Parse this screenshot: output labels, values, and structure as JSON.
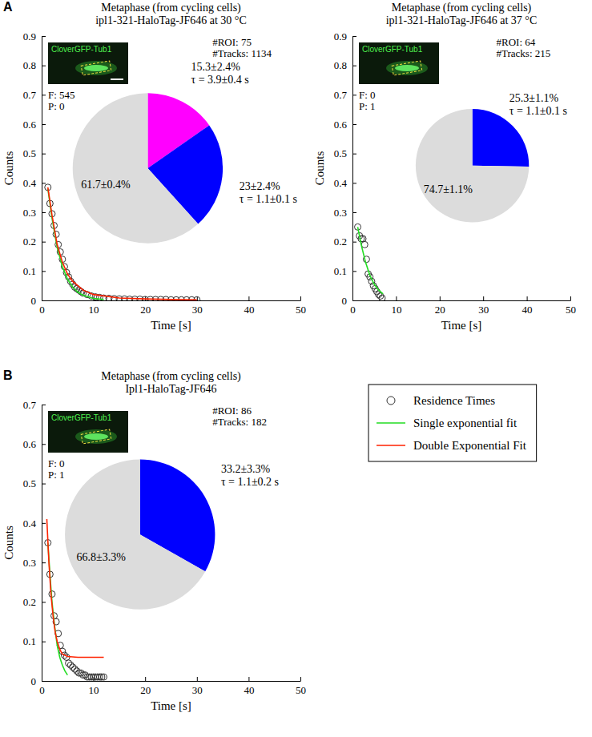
{
  "chart_data": [
    {
      "type": "scatter",
      "panel_label": "A",
      "title": "Metaphase (from cycling cells)",
      "subtitle": "ipl1-321-HaloTag-JF646 at 30 °C",
      "x_label": "Time [s]",
      "y_label": "Counts",
      "xlim": [
        0,
        50
      ],
      "xticks": [
        0,
        10,
        20,
        30,
        40,
        50
      ],
      "ylim": [
        0,
        0.9
      ],
      "yticks": [
        0,
        0.1,
        0.2,
        0.3,
        0.4,
        0.5,
        0.6,
        0.7,
        0.8,
        0.9
      ],
      "annotations": [
        "CloverGFP-Tub1",
        "#ROI: 75",
        "#Tracks: 1134",
        "F: 545",
        "P: 0"
      ],
      "series": [
        {
          "type": "scatter",
          "marker": "circle",
          "color": "#333333",
          "x": [
            1.2,
            1.6,
            2,
            2.4,
            2.8,
            3.2,
            3.6,
            4,
            4.4,
            4.8,
            5.2,
            5.6,
            6,
            6.4,
            6.8,
            7.2,
            7.6,
            8,
            8.8,
            9.6,
            10.4,
            11.2,
            12,
            13,
            14,
            15,
            16,
            17,
            18,
            19,
            20,
            21,
            22,
            23,
            24,
            25,
            26,
            27,
            28,
            29,
            30
          ],
          "values": [
            0.385,
            0.33,
            0.295,
            0.255,
            0.225,
            0.19,
            0.165,
            0.14,
            0.115,
            0.095,
            0.08,
            0.065,
            0.055,
            0.045,
            0.04,
            0.035,
            0.03,
            0.025,
            0.02,
            0.015,
            0.012,
            0.01,
            0.008,
            0.007,
            0.006,
            0.005,
            0.005,
            0.004,
            0.004,
            0.004,
            0.003,
            0.003,
            0.003,
            0.003,
            0.003,
            0.002,
            0.002,
            0.002,
            0.002,
            0.002,
            0.002
          ]
        },
        {
          "type": "line",
          "line_style": "solid",
          "color": "#22dd22",
          "x": [
            1.2,
            2,
            3,
            4,
            5,
            6,
            7,
            8,
            10,
            12
          ],
          "values": [
            0.38,
            0.28,
            0.18,
            0.115,
            0.072,
            0.045,
            0.028,
            0.018,
            0.007,
            0.003
          ]
        },
        {
          "type": "line",
          "line_style": "solid",
          "color": "#ff2200",
          "x": [
            1.2,
            2,
            3,
            4,
            5,
            6,
            8,
            10,
            15,
            20,
            25,
            30
          ],
          "values": [
            0.385,
            0.29,
            0.19,
            0.13,
            0.09,
            0.065,
            0.035,
            0.02,
            0.008,
            0.005,
            0.003,
            0.002
          ]
        }
      ],
      "pie": {
        "values": [
          15.3,
          23,
          61.7
        ],
        "value_labels": [
          "15.3±2.4%",
          "23±2.4%",
          "61.7±0.4%"
        ],
        "tau_labels": [
          "τ = 3.9±0.4 s",
          "τ = 1.1±0.1 s",
          null
        ],
        "colors": [
          "#ff00ff",
          "#0000ff",
          "#dcdcdc"
        ]
      }
    },
    {
      "type": "scatter",
      "title": "Metaphase (from cycling cells)",
      "subtitle": "ipl1-321-HaloTag-JF646 at 37 °C",
      "x_label": "Time [s]",
      "y_label": "Counts",
      "xlim": [
        0,
        50
      ],
      "xticks": [
        0,
        10,
        20,
        30,
        40,
        50
      ],
      "ylim": [
        0,
        0.9
      ],
      "yticks": [
        0,
        0.1,
        0.2,
        0.3,
        0.4,
        0.5,
        0.6,
        0.7,
        0.8,
        0.9
      ],
      "annotations": [
        "CloverGFP-Tub1",
        "#ROI: 64",
        "#Tracks: 215",
        "F: 0",
        "P: 1"
      ],
      "series": [
        {
          "type": "scatter",
          "marker": "circle",
          "color": "#333333",
          "x": [
            1.2,
            1.6,
            2,
            2.4,
            2.8,
            3.2,
            3.6,
            4,
            4.4,
            4.8,
            5.2,
            5.6,
            6,
            6.4,
            6.8
          ],
          "values": [
            0.25,
            0.22,
            0.21,
            0.21,
            0.19,
            0.14,
            0.09,
            0.08,
            0.065,
            0.05,
            0.04,
            0.03,
            0.02,
            0.015,
            0.008
          ]
        },
        {
          "type": "line",
          "line_style": "solid",
          "color": "#22dd22",
          "x": [
            1.2,
            2,
            3,
            4,
            5,
            6,
            7
          ],
          "values": [
            0.25,
            0.19,
            0.13,
            0.085,
            0.055,
            0.035,
            0.022
          ]
        }
      ],
      "pie": {
        "values": [
          25.3,
          74.7
        ],
        "value_labels": [
          "25.3±1.1%",
          "74.7±1.1%"
        ],
        "tau_labels": [
          "τ = 1.1±0.1 s",
          null
        ],
        "colors": [
          "#0000ff",
          "#dcdcdc"
        ]
      }
    },
    {
      "type": "scatter",
      "panel_label": "B",
      "title": "Metaphase (from cycling cells)",
      "subtitle": "Ipl1-HaloTag-JF646",
      "x_label": "Time [s]",
      "y_label": "Counts",
      "xlim": [
        0,
        50
      ],
      "xticks": [
        0,
        10,
        20,
        30,
        40,
        50
      ],
      "ylim": [
        0,
        0.7
      ],
      "yticks": [
        0,
        0.1,
        0.2,
        0.3,
        0.4,
        0.5,
        0.6,
        0.7
      ],
      "legend": "right",
      "annotations": [
        "CloverGFP-Tub1",
        "#ROI: 86",
        "#Tracks: 182",
        "F: 0",
        "P: 1"
      ],
      "series": [
        {
          "name": "Residence Times",
          "type": "scatter",
          "marker": "circle",
          "color": "#333333",
          "x": [
            1.2,
            1.6,
            2,
            2.4,
            2.8,
            3.2,
            3.6,
            4,
            4.4,
            4.8,
            5.2,
            5.6,
            6,
            6.4,
            6.8,
            7.2,
            7.6,
            8,
            8.4,
            8.8,
            9.2,
            9.6,
            10,
            10.4,
            10.8,
            11.2,
            11.6,
            12
          ],
          "values": [
            0.35,
            0.27,
            0.22,
            0.165,
            0.15,
            0.12,
            0.09,
            0.075,
            0.065,
            0.06,
            0.045,
            0.04,
            0.035,
            0.03,
            0.025,
            0.02,
            0.02,
            0.015,
            0.015,
            0.01,
            0.01,
            0.01,
            0.01,
            0.01,
            0.01,
            0.01,
            0.01,
            0.01
          ]
        },
        {
          "name": "Single exponential fit",
          "type": "line",
          "line_style": "solid",
          "color": "#22dd22",
          "x": [
            1.2,
            1.6,
            2,
            2.5,
            3,
            3.5,
            4,
            4.5,
            5
          ],
          "values": [
            0.35,
            0.27,
            0.2,
            0.14,
            0.09,
            0.06,
            0.04,
            0.025,
            0.015
          ]
        },
        {
          "name": "Double Exponential Fit",
          "type": "line",
          "line_style": "solid",
          "color": "#ff2200",
          "x": [
            1,
            1.4,
            1.8,
            2.2,
            2.6,
            3,
            3.5,
            4,
            5,
            7,
            10,
            12
          ],
          "values": [
            0.41,
            0.3,
            0.22,
            0.165,
            0.125,
            0.1,
            0.08,
            0.068,
            0.062,
            0.06,
            0.06,
            0.06
          ]
        }
      ],
      "pie": {
        "values": [
          33.2,
          66.8
        ],
        "value_labels": [
          "33.2±3.3%",
          "66.8±3.3%"
        ],
        "tau_labels": [
          "τ = 1.1±0.2 s",
          null
        ],
        "colors": [
          "#0000ff",
          "#dcdcdc"
        ]
      }
    }
  ]
}
